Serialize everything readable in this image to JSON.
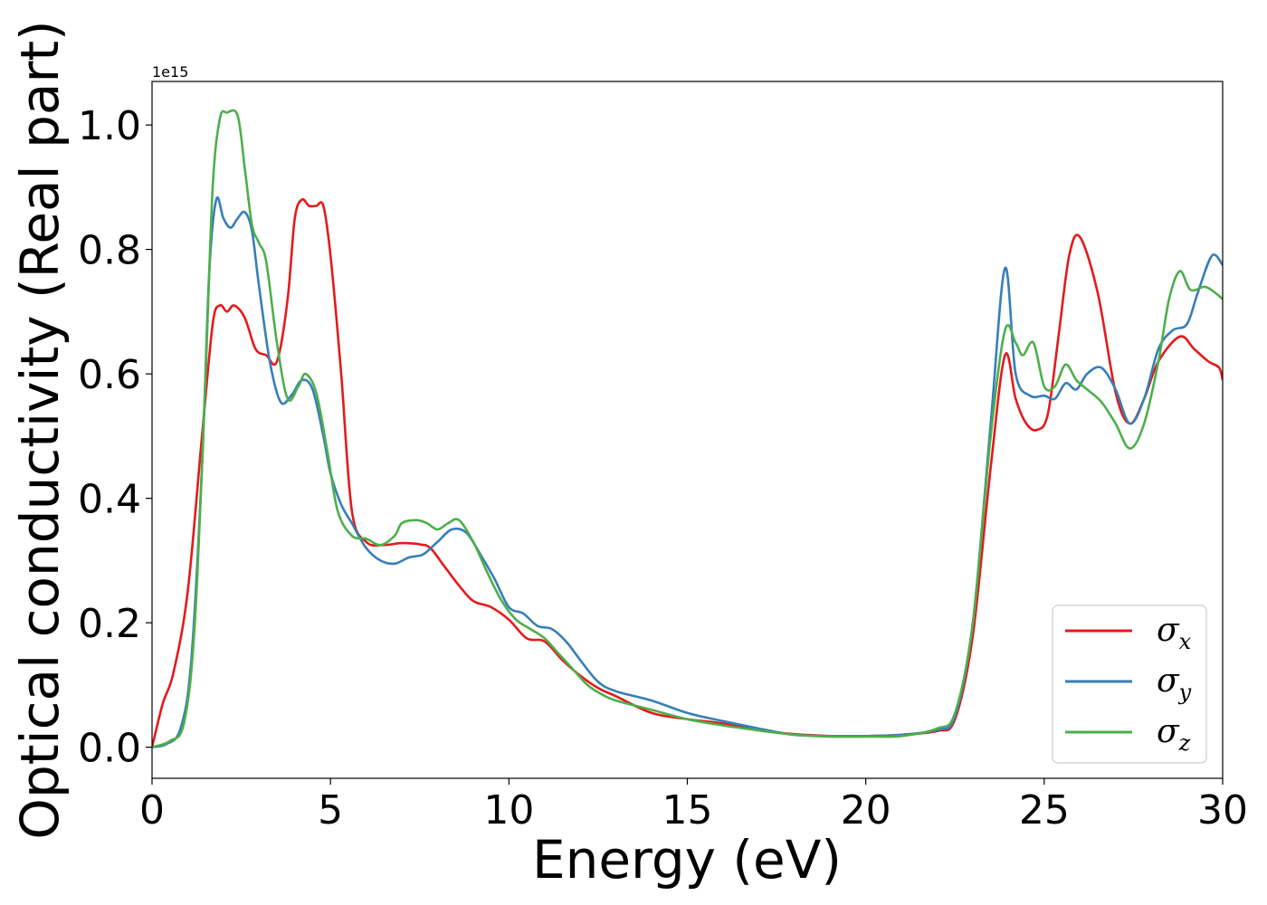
{
  "chart_data": {
    "type": "line",
    "xlabel": "Energy (eV)",
    "ylabel": "Optical conductivity (Real part)",
    "y_offset_label": "1e15",
    "xlim": [
      0,
      30
    ],
    "ylim": [
      -0.05,
      1.07
    ],
    "xticks": [
      0,
      5,
      10,
      15,
      20,
      25,
      30
    ],
    "xtick_labels": [
      "0",
      "5",
      "10",
      "15",
      "20",
      "25",
      "30"
    ],
    "yticks": [
      0.0,
      0.2,
      0.4,
      0.6,
      0.8,
      1.0
    ],
    "ytick_labels": [
      "0.0",
      "0.2",
      "0.4",
      "0.6",
      "0.8",
      "1.0"
    ],
    "grid": false,
    "legend_position": "bottom-right",
    "series": [
      {
        "name": "σx",
        "symbol": "σ",
        "subscript": "x",
        "color": "#e41a1c",
        "x": [
          0,
          0.3,
          0.6,
          1.0,
          1.4,
          1.7,
          1.9,
          2.1,
          2.3,
          2.6,
          2.9,
          3.2,
          3.5,
          3.8,
          4.0,
          4.2,
          4.4,
          4.6,
          4.8,
          5.0,
          5.3,
          5.6,
          6.0,
          6.5,
          7.0,
          7.5,
          7.8,
          8.2,
          8.6,
          9.0,
          9.5,
          10.0,
          10.5,
          11.0,
          11.5,
          12.0,
          12.5,
          13.0,
          14.0,
          15.0,
          16.0,
          17.0,
          18.0,
          19.0,
          20.0,
          21.0,
          22.0,
          22.5,
          23.0,
          23.5,
          23.9,
          24.2,
          24.5,
          24.8,
          25.1,
          25.4,
          25.7,
          26.0,
          26.5,
          27.0,
          27.4,
          27.8,
          28.2,
          28.8,
          29.2,
          29.6,
          29.9,
          30.0
        ],
        "values": [
          0.0,
          0.07,
          0.12,
          0.25,
          0.5,
          0.68,
          0.71,
          0.7,
          0.71,
          0.69,
          0.64,
          0.63,
          0.62,
          0.72,
          0.85,
          0.88,
          0.87,
          0.87,
          0.87,
          0.79,
          0.6,
          0.38,
          0.33,
          0.325,
          0.328,
          0.326,
          0.32,
          0.29,
          0.26,
          0.235,
          0.225,
          0.205,
          0.175,
          0.17,
          0.14,
          0.115,
          0.095,
          0.082,
          0.055,
          0.045,
          0.038,
          0.027,
          0.021,
          0.018,
          0.018,
          0.02,
          0.026,
          0.045,
          0.18,
          0.45,
          0.63,
          0.56,
          0.52,
          0.51,
          0.535,
          0.66,
          0.79,
          0.82,
          0.73,
          0.57,
          0.52,
          0.56,
          0.62,
          0.66,
          0.64,
          0.62,
          0.61,
          0.59
        ]
      },
      {
        "name": "σy",
        "symbol": "σ",
        "subscript": "y",
        "color": "#377eb8",
        "x": [
          0,
          0.4,
          0.8,
          1.1,
          1.4,
          1.6,
          1.8,
          2.0,
          2.2,
          2.4,
          2.6,
          2.8,
          3.0,
          3.3,
          3.6,
          3.9,
          4.2,
          4.5,
          4.8,
          5.0,
          5.3,
          5.6,
          6.0,
          6.4,
          6.8,
          7.2,
          7.6,
          8.0,
          8.4,
          8.8,
          9.2,
          9.6,
          10.0,
          10.4,
          10.8,
          11.2,
          11.6,
          12.0,
          12.5,
          13.0,
          14.0,
          15.0,
          16.0,
          17.0,
          18.0,
          19.0,
          20.0,
          21.0,
          22.0,
          22.5,
          23.0,
          23.5,
          23.9,
          24.2,
          24.6,
          25.0,
          25.3,
          25.6,
          25.9,
          26.2,
          26.6,
          27.0,
          27.4,
          27.8,
          28.2,
          28.6,
          29.0,
          29.3,
          29.7,
          30.0
        ],
        "values": [
          0.0,
          0.005,
          0.03,
          0.14,
          0.45,
          0.76,
          0.88,
          0.85,
          0.835,
          0.85,
          0.86,
          0.83,
          0.74,
          0.62,
          0.555,
          0.565,
          0.59,
          0.575,
          0.5,
          0.44,
          0.39,
          0.36,
          0.32,
          0.3,
          0.295,
          0.305,
          0.31,
          0.33,
          0.35,
          0.345,
          0.31,
          0.27,
          0.225,
          0.215,
          0.195,
          0.19,
          0.17,
          0.14,
          0.105,
          0.09,
          0.075,
          0.055,
          0.042,
          0.03,
          0.02,
          0.018,
          0.018,
          0.02,
          0.028,
          0.05,
          0.2,
          0.52,
          0.77,
          0.6,
          0.565,
          0.565,
          0.56,
          0.585,
          0.575,
          0.6,
          0.61,
          0.575,
          0.52,
          0.56,
          0.64,
          0.67,
          0.68,
          0.73,
          0.79,
          0.775
        ]
      },
      {
        "name": "σz",
        "symbol": "σ",
        "subscript": "z",
        "color": "#4daf4a",
        "x": [
          0,
          0.5,
          0.9,
          1.2,
          1.5,
          1.7,
          1.9,
          2.1,
          2.4,
          2.6,
          2.8,
          3.0,
          3.2,
          3.5,
          3.8,
          4.1,
          4.3,
          4.6,
          4.9,
          5.2,
          5.6,
          6.0,
          6.4,
          6.8,
          7.0,
          7.4,
          7.7,
          8.0,
          8.3,
          8.6,
          9.0,
          9.4,
          9.8,
          10.2,
          10.6,
          11.0,
          11.4,
          11.8,
          12.2,
          12.6,
          13.0,
          14.0,
          15.0,
          16.0,
          17.0,
          18.0,
          19.0,
          20.0,
          21.0,
          22.0,
          22.5,
          23.0,
          23.5,
          23.9,
          24.2,
          24.4,
          24.7,
          25.0,
          25.3,
          25.6,
          25.9,
          26.2,
          26.6,
          27.0,
          27.4,
          27.8,
          28.2,
          28.5,
          28.8,
          29.1,
          29.5,
          29.8,
          30.0
        ],
        "values": [
          0.0,
          0.01,
          0.04,
          0.2,
          0.6,
          0.9,
          1.01,
          1.02,
          1.015,
          0.93,
          0.84,
          0.81,
          0.78,
          0.65,
          0.56,
          0.58,
          0.6,
          0.57,
          0.48,
          0.38,
          0.34,
          0.335,
          0.325,
          0.34,
          0.36,
          0.365,
          0.36,
          0.35,
          0.36,
          0.365,
          0.33,
          0.28,
          0.235,
          0.205,
          0.19,
          0.175,
          0.15,
          0.125,
          0.1,
          0.085,
          0.075,
          0.06,
          0.045,
          0.035,
          0.027,
          0.02,
          0.017,
          0.017,
          0.018,
          0.03,
          0.055,
          0.2,
          0.5,
          0.67,
          0.65,
          0.63,
          0.65,
          0.58,
          0.58,
          0.615,
          0.59,
          0.575,
          0.555,
          0.52,
          0.48,
          0.52,
          0.62,
          0.72,
          0.765,
          0.735,
          0.74,
          0.73,
          0.72
        ]
      }
    ]
  }
}
